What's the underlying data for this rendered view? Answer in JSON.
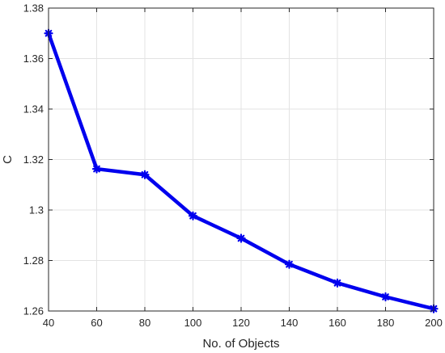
{
  "chart_data": {
    "type": "line",
    "title": "",
    "xlabel": "No. of Objects",
    "ylabel": "C",
    "xlim": [
      40,
      200
    ],
    "ylim": [
      1.26,
      1.38
    ],
    "xticks": [
      40,
      60,
      80,
      100,
      120,
      140,
      160,
      180,
      200
    ],
    "xtick_labels": [
      "40",
      "60",
      "80",
      "100",
      "120",
      "140",
      "160",
      "180",
      "200"
    ],
    "yticks": [
      1.26,
      1.28,
      1.3,
      1.32,
      1.34,
      1.36,
      1.38
    ],
    "ytick_labels": [
      "1.26",
      "1.28",
      "1.3",
      "1.32",
      "1.34",
      "1.36",
      "1.38"
    ],
    "grid": true,
    "legend": "none",
    "series": [
      {
        "color": "#0000ee",
        "marker": "asterisk",
        "x": [
          40,
          60,
          80,
          100,
          120,
          140,
          160,
          180,
          200
        ],
        "y": [
          1.37,
          1.3163,
          1.314,
          1.2977,
          1.2888,
          1.2785,
          1.2711,
          1.2656,
          1.2609
        ]
      }
    ]
  }
}
